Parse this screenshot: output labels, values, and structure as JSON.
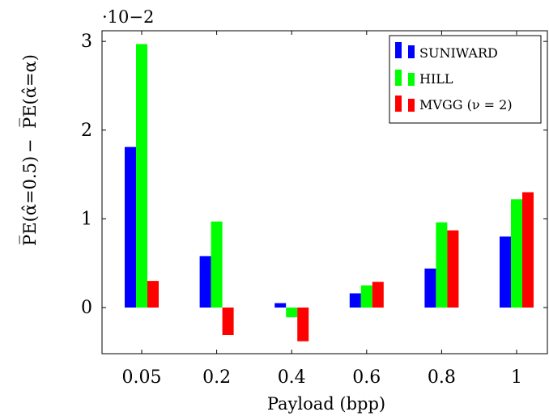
{
  "chart_data": {
    "type": "bar",
    "categories": [
      "0.05",
      "0.2",
      "0.4",
      "0.6",
      "0.8",
      "1"
    ],
    "series": [
      {
        "name": "SUNIWARD",
        "color": "#0000ff",
        "values": [
          1.81,
          0.58,
          0.05,
          0.16,
          0.44,
          0.8
        ]
      },
      {
        "name": "HILL",
        "color": "#00ff00",
        "values": [
          2.97,
          0.97,
          -0.11,
          0.25,
          0.96,
          1.22
        ]
      },
      {
        "name": "MVGG (ν = 2)",
        "color": "#ff0000",
        "values": [
          0.3,
          -0.31,
          -0.38,
          0.29,
          0.87,
          1.3
        ]
      }
    ],
    "y_ticks": [
      "0",
      "1",
      "2",
      "3"
    ],
    "y_multiplier": "·10−2",
    "xlabel": "Payload (bpp)",
    "ylabel_left": "P̅E(α̂=0.5)",
    "ylabel_right": "P̅E(α̂=α)",
    "ylabel_minus": "−",
    "ylim": [
      -0.52,
      3.12
    ],
    "legend_position": "top-right",
    "grid": false
  }
}
